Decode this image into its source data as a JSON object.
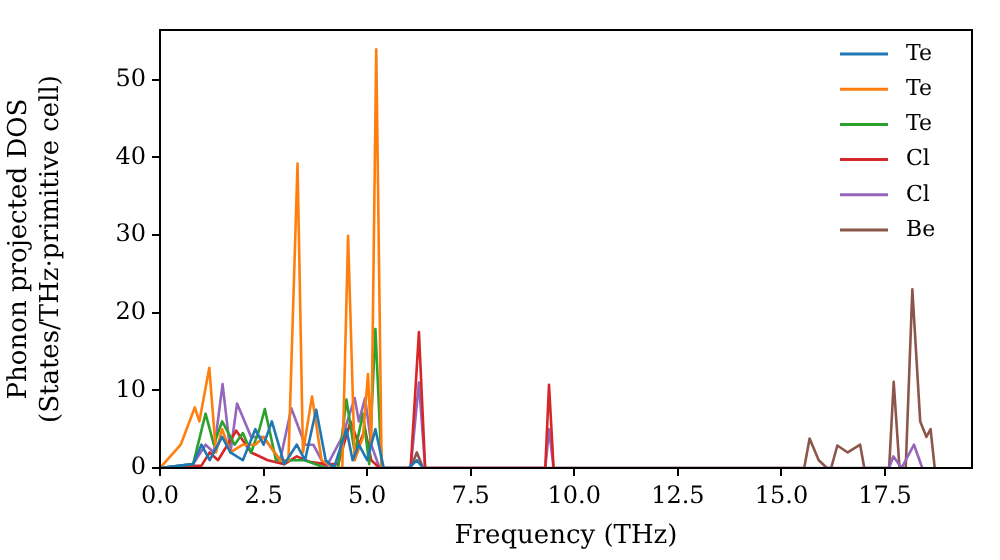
{
  "chart_data": {
    "type": "line",
    "xlabel": "Frequency (THz)",
    "ylabel": "Phonon projected DOS\n(States/THz·primitive cell)",
    "xlim": [
      0,
      19.6
    ],
    "ylim": [
      0,
      56.4
    ],
    "xticks": [
      {
        "value": 0,
        "label": "0.0"
      },
      {
        "value": 2.5,
        "label": "2.5"
      },
      {
        "value": 5,
        "label": "5.0"
      },
      {
        "value": 7.5,
        "label": "7.5"
      },
      {
        "value": 10,
        "label": "10.0"
      },
      {
        "value": 12.5,
        "label": "12.5"
      },
      {
        "value": 15,
        "label": "15.0"
      },
      {
        "value": 17.5,
        "label": "17.5"
      }
    ],
    "yticks": [
      0,
      10,
      20,
      30,
      40,
      50
    ],
    "grid": false,
    "legend": "top right",
    "marker": "none",
    "line_style": "solid",
    "series": [
      {
        "name": "Te",
        "color": "#1f77b4",
        "x": [
          0,
          0.8,
          1.0,
          1.2,
          1.5,
          1.7,
          2.0,
          2.3,
          2.5,
          2.7,
          3.0,
          3.3,
          3.5,
          3.77,
          4.0,
          4.2,
          4.5,
          4.65,
          4.8,
          5.0,
          5.2,
          5.4,
          6.0,
          6.2,
          6.35
        ],
        "values": [
          0,
          0.5,
          3,
          1,
          4,
          2,
          1,
          5,
          3,
          6,
          0.5,
          3,
          1,
          7.5,
          1,
          0,
          5,
          1,
          3,
          1,
          5,
          0,
          0,
          1,
          0
        ]
      },
      {
        "name": "Te",
        "color": "#ff7f0e",
        "x": [
          0,
          0.5,
          0.84,
          0.95,
          1.19,
          1.35,
          1.5,
          1.7,
          2.0,
          2.3,
          2.5,
          2.9,
          3.1,
          3.32,
          3.45,
          3.67,
          3.9,
          4.2,
          4.4,
          4.54,
          4.7,
          4.9,
          5.02,
          5.1,
          5.22,
          5.35
        ],
        "values": [
          0,
          3,
          7.8,
          6,
          12.9,
          2,
          5,
          2,
          3,
          3,
          4,
          1,
          1,
          39.2,
          2,
          9.2,
          1,
          0,
          0,
          29.9,
          1,
          4,
          12.1,
          3,
          53.9,
          0
        ]
      },
      {
        "name": "Te",
        "color": "#2ca02c",
        "x": [
          0,
          0.8,
          1.1,
          1.3,
          1.5,
          1.8,
          2.0,
          2.2,
          2.4,
          2.53,
          2.8,
          3.5,
          4.0,
          4.3,
          4.5,
          4.7,
          4.9,
          5.05,
          5.2,
          5.35
        ],
        "values": [
          0,
          0.5,
          7,
          3,
          6,
          3,
          4.5,
          2,
          5,
          7.6,
          1,
          1,
          0,
          0,
          8.8,
          2,
          7,
          0.5,
          17.9,
          0
        ]
      },
      {
        "name": "Cl",
        "color": "#d62728",
        "x": [
          0,
          1.0,
          1.2,
          1.4,
          1.84,
          2.2,
          2.6,
          3.0,
          3.3,
          3.6,
          4.0,
          4.3,
          4.6,
          4.8,
          4.95,
          5.1,
          5.3,
          6.05,
          6.25,
          6.4,
          9.3,
          9.39,
          9.5
        ],
        "values": [
          0,
          0.3,
          2,
          1,
          4.8,
          2,
          1,
          0.5,
          1.5,
          0.8,
          0.5,
          0.5,
          6,
          3,
          5,
          1,
          0,
          0,
          17.5,
          0,
          0,
          10.7,
          0
        ]
      },
      {
        "name": "Cl",
        "color": "#9467bd",
        "x": [
          0,
          0.8,
          1.1,
          1.3,
          1.51,
          1.7,
          1.86,
          2.2,
          2.5,
          2.9,
          3.17,
          3.5,
          3.7,
          4.0,
          4.4,
          4.7,
          4.8,
          4.95,
          5.1,
          5.3,
          6.05,
          6.25,
          6.4,
          9.3,
          9.39,
          9.5,
          17.6,
          17.7,
          17.9,
          18.2,
          18.4
        ],
        "values": [
          0,
          0.5,
          3,
          2,
          10.8,
          2,
          8.3,
          4,
          4,
          1,
          7.7,
          3,
          3,
          0,
          4,
          9,
          6,
          9,
          3,
          0,
          0,
          11,
          0,
          0,
          5,
          0,
          0,
          1.5,
          0,
          3,
          0
        ]
      },
      {
        "name": "Be",
        "color": "#8c564b",
        "x": [
          0,
          6.05,
          6.2,
          6.35,
          15.55,
          15.68,
          15.9,
          16.1,
          16.2,
          16.35,
          16.6,
          16.9,
          17.0,
          17.6,
          17.71,
          17.85,
          18.0,
          18.16,
          18.35,
          18.5,
          18.6,
          18.7
        ],
        "values": [
          0,
          0,
          2,
          0,
          0,
          3.8,
          1,
          0,
          0,
          2.9,
          2,
          3,
          0,
          0,
          11.1,
          0,
          0,
          23,
          6,
          4,
          5,
          0
        ]
      }
    ]
  }
}
